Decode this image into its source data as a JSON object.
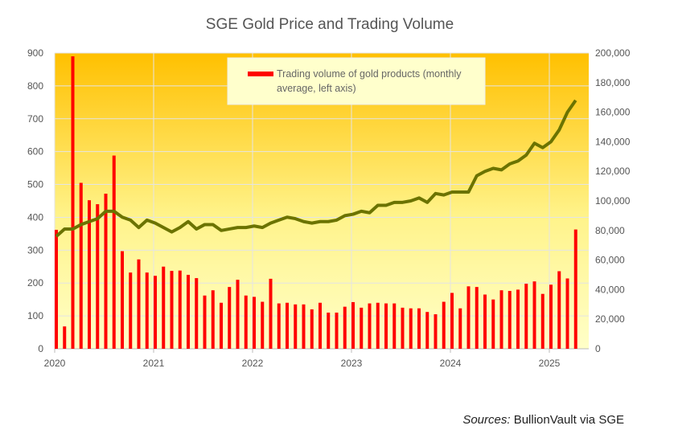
{
  "chart_data": {
    "type": "bar+line",
    "title": "SGE Gold Price and Trading Volume",
    "x_tick_labels": [
      "2020",
      "2021",
      "2022",
      "2023",
      "2024",
      "2025"
    ],
    "y_left": {
      "ticks": [
        "0",
        "100",
        "200",
        "300",
        "400",
        "500",
        "600",
        "700",
        "800",
        "900"
      ],
      "range": [
        0,
        900
      ]
    },
    "y_right": {
      "ticks": [
        "0",
        "20,000",
        "40,000",
        "60,000",
        "80,000",
        "100,000",
        "120,000",
        "140,000",
        "160,000",
        "180,000",
        "200,000"
      ],
      "range": [
        0,
        200000
      ]
    },
    "grid": true,
    "legend": {
      "placement": "top-center",
      "entries": [
        "Trading volume of gold products (monthly",
        "average, left axis)"
      ]
    },
    "start_month": "2020-01",
    "series": [
      {
        "name": "Trading volume of gold products (monthly average, left axis)",
        "type": "bar",
        "axis": "left",
        "color": "#FF0000",
        "values": [
          362,
          68,
          890,
          505,
          452,
          440,
          472,
          588,
          297,
          232,
          272,
          232,
          222,
          250,
          237,
          238,
          225,
          215,
          162,
          178,
          140,
          188,
          210,
          162,
          158,
          143,
          213,
          138,
          140,
          135,
          135,
          120,
          140,
          110,
          110,
          128,
          142,
          125,
          138,
          140,
          138,
          138,
          125,
          123,
          123,
          112,
          105,
          143,
          170,
          123,
          190,
          188,
          165,
          150,
          178,
          176,
          180,
          198,
          205,
          167,
          195,
          236,
          214,
          363
        ]
      },
      {
        "type": "line",
        "axis": "right",
        "color": "#6B7300",
        "values": [
          76000,
          81000,
          81000,
          84000,
          86000,
          88000,
          93000,
          93000,
          89000,
          87000,
          82000,
          87000,
          85000,
          82000,
          79000,
          82000,
          86000,
          81000,
          84000,
          84000,
          80000,
          81000,
          82000,
          82000,
          83000,
          82000,
          85000,
          87000,
          89000,
          88000,
          86000,
          85000,
          86000,
          86000,
          87000,
          90000,
          91000,
          93000,
          92000,
          97000,
          97000,
          99000,
          99000,
          100000,
          102000,
          99000,
          105000,
          104000,
          106000,
          106000,
          106000,
          117000,
          120000,
          122000,
          121000,
          125000,
          127000,
          131000,
          139000,
          136000,
          140000,
          148000,
          160000,
          168000
        ]
      }
    ]
  },
  "source": {
    "label": "Sources:",
    "text": "BullionVault via SGE"
  }
}
